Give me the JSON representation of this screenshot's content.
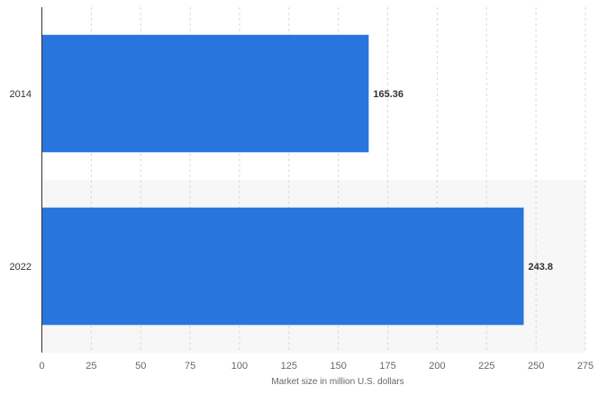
{
  "chart_data": {
    "type": "bar",
    "orientation": "horizontal",
    "categories": [
      "2014",
      "2022"
    ],
    "values": [
      165.36,
      243.8
    ],
    "data_labels": [
      "165.36",
      "243.8"
    ],
    "title": "",
    "xlabel": "Market size in million U.S. dollars",
    "ylabel": "",
    "xlim": [
      0,
      275
    ],
    "xticks": [
      0,
      25,
      50,
      75,
      100,
      125,
      150,
      175,
      200,
      225,
      250,
      275
    ],
    "grid": "vertical dashed",
    "bar_color": "#2875de",
    "alt_band_color": "#f7f7f7"
  }
}
